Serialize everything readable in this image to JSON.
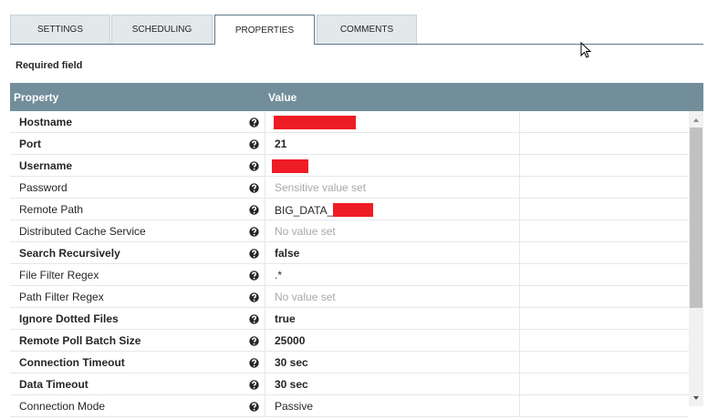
{
  "tabs": [
    {
      "label": "SETTINGS"
    },
    {
      "label": "SCHEDULING"
    },
    {
      "label": "PROPERTIES",
      "active": true
    },
    {
      "label": "COMMENTS"
    }
  ],
  "required_label": "Required field",
  "table": {
    "headers": [
      "Property",
      "Value"
    ],
    "rows": [
      {
        "property": "Hostname",
        "required": true,
        "redacted": true
      },
      {
        "property": "Port",
        "required": true,
        "value": "21"
      },
      {
        "property": "Username",
        "required": true,
        "redacted": true
      },
      {
        "property": "Password",
        "value": "Sensitive value set",
        "placeholder": true
      },
      {
        "property": "Remote Path",
        "value": "BIG_DATA_",
        "redacted": true
      },
      {
        "property": "Distributed Cache Service",
        "value": "No value set",
        "placeholder": true
      },
      {
        "property": "Search Recursively",
        "required": true,
        "value": "false"
      },
      {
        "property": "File Filter Regex",
        "value": ".*"
      },
      {
        "property": "Path Filter Regex",
        "value": "No value set",
        "placeholder": true
      },
      {
        "property": "Ignore Dotted Files",
        "required": true,
        "value": "true"
      },
      {
        "property": "Remote Poll Batch Size",
        "required": true,
        "value": "25000"
      },
      {
        "property": "Connection Timeout",
        "required": true,
        "value": "30 sec"
      },
      {
        "property": "Data Timeout",
        "required": true,
        "value": "30 sec"
      },
      {
        "property": "Connection Mode",
        "value": "Passive"
      }
    ]
  }
}
